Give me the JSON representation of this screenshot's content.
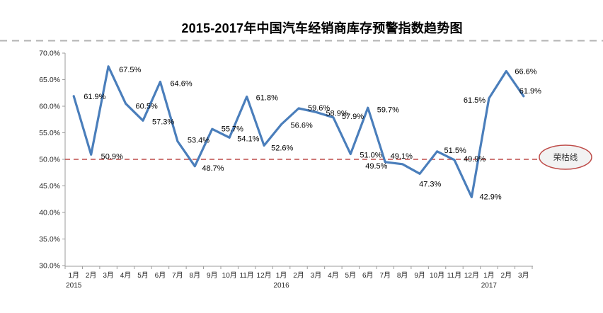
{
  "chart_data": {
    "type": "line",
    "title": "2015-2017年中国汽车经销商库存预警指数趋势图",
    "x": [
      "1月",
      "2月",
      "3月",
      "4月",
      "5月",
      "6月",
      "7月",
      "8月",
      "9月",
      "10月",
      "11月",
      "12月",
      "1月",
      "2月",
      "3月",
      "4月",
      "5月",
      "6月",
      "7月",
      "8月",
      "9月",
      "10月",
      "11月",
      "12月",
      "1月",
      "2月",
      "3月"
    ],
    "year_markers": [
      {
        "label": "2015",
        "index": 0
      },
      {
        "label": "2016",
        "index": 12
      },
      {
        "label": "2017",
        "index": 24
      }
    ],
    "series": [
      {
        "name": "库存预警指数",
        "values": [
          61.9,
          50.9,
          67.5,
          60.5,
          57.3,
          64.6,
          53.4,
          48.7,
          55.7,
          54.1,
          61.8,
          52.6,
          56.6,
          59.6,
          58.9,
          57.9,
          51.0,
          59.7,
          49.5,
          49.1,
          47.3,
          51.5,
          49.9,
          42.9,
          61.5,
          66.6,
          61.9
        ]
      }
    ],
    "point_labels": [
      "61.9%",
      "50.9%",
      "67.5%",
      "60.5%",
      "57.3%",
      "64.6%",
      "53.4%",
      "48.7%",
      "55.7%",
      "54.1%",
      "61.8%",
      "52.6%",
      "56.6%",
      "59.6%",
      "58.9%",
      "57.9%",
      "51.0%",
      "59.7%",
      "49.5%",
      "49.1%",
      "47.3%",
      "51.5%",
      "49.9%",
      "42.9%",
      "61.5%",
      "66.6%",
      "61.9%"
    ],
    "ylim": [
      30,
      70
    ],
    "ytick_step": 5,
    "ytick_labels": [
      "70.0%",
      "65.0%",
      "60.0%",
      "55.0%",
      "50.0%",
      "45.0%",
      "40.0%",
      "35.0%",
      "30.0%"
    ],
    "reference_line": {
      "value": 50,
      "label": "荣枯线"
    },
    "legend": "none",
    "grid": false,
    "colors": {
      "line": "#4a7ebb",
      "reference": "#be4b48",
      "axis": "#9b9b9b",
      "separator": "#b3b3b3",
      "text": "#262626",
      "data_label": "#000000",
      "ellipse_fill": "#f2f2f2"
    }
  }
}
